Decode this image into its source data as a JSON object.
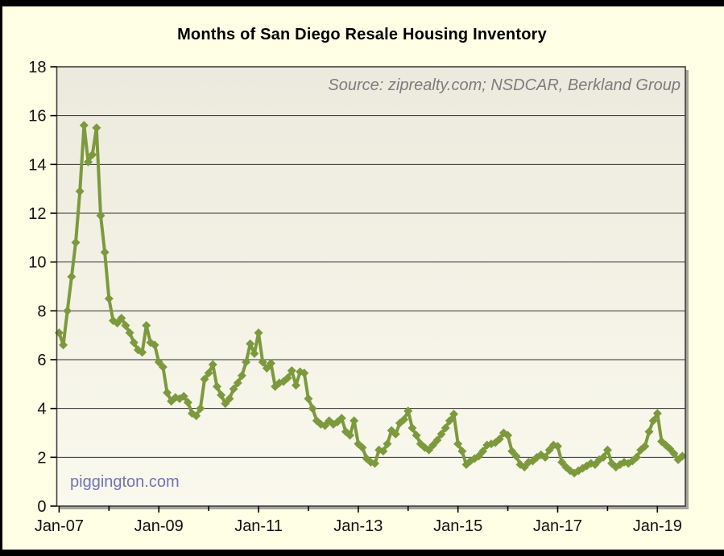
{
  "title": "Months of San Diego Resale Housing Inventory",
  "source_note": "Source: ziprealty.com; NSDCAR, Berkland Group",
  "watermark": "piggington.com",
  "colors": {
    "canvas_background": "#FFFFE6",
    "window_bars": "#000000",
    "line": "#7C9A3D",
    "plot_bg_top": "#ECEADD",
    "plot_bg_bottom": "#FAF9ED",
    "gridline": "#2F2F2F",
    "frame": "#3F3F3F",
    "frame_shadow": "#A5A49B",
    "axis_text": "#111111",
    "source_text": "#7C7C7C",
    "watermark_text": "#7173B9"
  },
  "chart_data": {
    "type": "line",
    "title": "Months of San Diego Resale Housing Inventory",
    "series_name": "Months of resale housing inventory",
    "x_start": "Jan-2007",
    "x_interval": "monthly",
    "x_end": "Jul-2019",
    "x_tick_labels": [
      "Jan-07",
      "Jan-09",
      "Jan-11",
      "Jan-13",
      "Jan-15",
      "Jan-17",
      "Jan-19"
    ],
    "x_minor_ticks": [
      "Jan-08",
      "Jan-10",
      "Jan-12",
      "Jan-14",
      "Jan-16",
      "Jan-18"
    ],
    "ylim": [
      0,
      18
    ],
    "y_ticks": [
      0,
      2,
      4,
      6,
      8,
      10,
      12,
      14,
      16,
      18
    ],
    "grid": true,
    "legend": "none",
    "marker": "diamond",
    "values": [
      7.1,
      6.6,
      8.0,
      9.4,
      10.8,
      12.9,
      15.6,
      14.1,
      14.4,
      15.5,
      11.9,
      10.4,
      8.5,
      7.6,
      7.5,
      7.7,
      7.4,
      7.1,
      6.7,
      6.4,
      6.3,
      7.4,
      6.7,
      6.6,
      5.9,
      5.7,
      4.65,
      4.3,
      4.45,
      4.4,
      4.5,
      4.25,
      3.8,
      3.7,
      4.0,
      5.2,
      5.45,
      5.8,
      4.9,
      4.55,
      4.2,
      4.4,
      4.8,
      5.05,
      5.35,
      5.9,
      6.65,
      6.25,
      7.1,
      5.9,
      5.65,
      5.85,
      4.9,
      5.05,
      5.1,
      5.25,
      5.55,
      4.95,
      5.5,
      5.45,
      4.4,
      4.0,
      3.5,
      3.35,
      3.3,
      3.5,
      3.35,
      3.45,
      3.6,
      3.05,
      2.9,
      3.5,
      2.55,
      2.4,
      1.95,
      1.8,
      1.75,
      2.3,
      2.25,
      2.55,
      3.1,
      2.95,
      3.4,
      3.55,
      3.9,
      3.2,
      2.9,
      2.55,
      2.4,
      2.3,
      2.5,
      2.7,
      2.95,
      3.2,
      3.5,
      3.77,
      2.55,
      2.25,
      1.7,
      1.85,
      1.95,
      2.05,
      2.25,
      2.5,
      2.55,
      2.6,
      2.75,
      3.0,
      2.9,
      2.25,
      2.05,
      1.7,
      1.6,
      1.8,
      1.85,
      2.0,
      2.1,
      2.0,
      2.3,
      2.5,
      2.45,
      1.8,
      1.6,
      1.45,
      1.35,
      1.45,
      1.55,
      1.65,
      1.75,
      1.7,
      1.9,
      2.0,
      2.3,
      1.75,
      1.6,
      1.7,
      1.8,
      1.75,
      1.85,
      2.0,
      2.3,
      2.45,
      3.05,
      3.5,
      3.8,
      2.65,
      2.5,
      2.35,
      2.15,
      1.9,
      2.05
    ]
  }
}
